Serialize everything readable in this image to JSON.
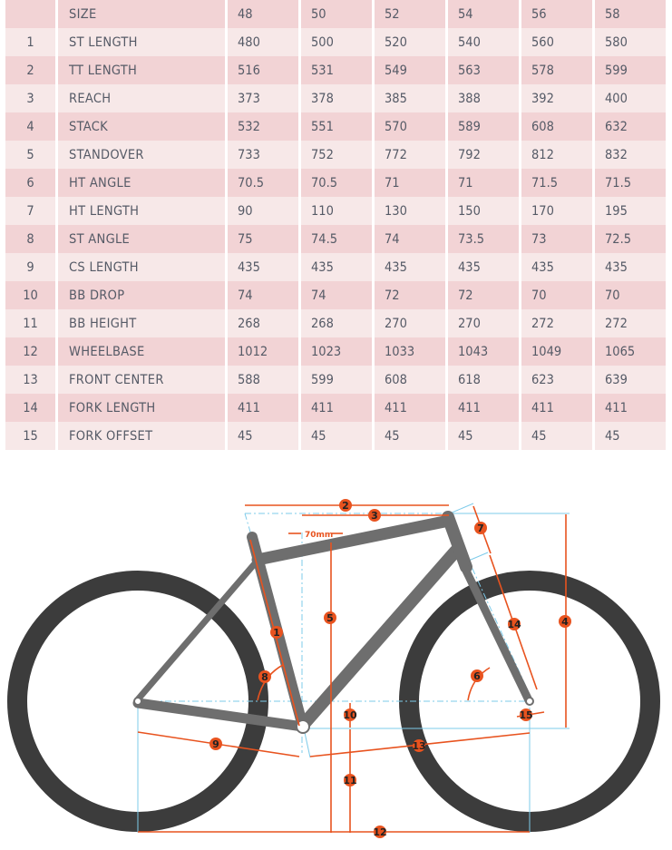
{
  "table": {
    "header": {
      "label": "SIZE",
      "sizes": [
        "48",
        "50",
        "52",
        "54",
        "56",
        "58"
      ]
    },
    "rows": [
      {
        "n": "1",
        "label": "ST LENGTH",
        "v": [
          "480",
          "500",
          "520",
          "540",
          "560",
          "580"
        ]
      },
      {
        "n": "2",
        "label": "TT LENGTH",
        "v": [
          "516",
          "531",
          "549",
          "563",
          "578",
          "599"
        ]
      },
      {
        "n": "3",
        "label": "REACH",
        "v": [
          "373",
          "378",
          "385",
          "388",
          "392",
          "400"
        ]
      },
      {
        "n": "4",
        "label": "STACK",
        "v": [
          "532",
          "551",
          "570",
          "589",
          "608",
          "632"
        ]
      },
      {
        "n": "5",
        "label": "STANDOVER",
        "v": [
          "733",
          "752",
          "772",
          "792",
          "812",
          "832"
        ]
      },
      {
        "n": "6",
        "label": "HT ANGLE",
        "v": [
          "70.5",
          "70.5",
          "71",
          "71",
          "71.5",
          "71.5"
        ]
      },
      {
        "n": "7",
        "label": "HT LENGTH",
        "v": [
          "90",
          "110",
          "130",
          "150",
          "170",
          "195"
        ]
      },
      {
        "n": "8",
        "label": "ST ANGLE",
        "v": [
          "75",
          "74.5",
          "74",
          "73.5",
          "73",
          "72.5"
        ]
      },
      {
        "n": "9",
        "label": "CS LENGTH",
        "v": [
          "435",
          "435",
          "435",
          "435",
          "435",
          "435"
        ]
      },
      {
        "n": "10",
        "label": "BB DROP",
        "v": [
          "74",
          "74",
          "72",
          "72",
          "70",
          "70"
        ]
      },
      {
        "n": "11",
        "label": "BB HEIGHT",
        "v": [
          "268",
          "268",
          "270",
          "270",
          "272",
          "272"
        ]
      },
      {
        "n": "12",
        "label": "WHEELBASE",
        "v": [
          "1012",
          "1023",
          "1033",
          "1043",
          "1049",
          "1065"
        ]
      },
      {
        "n": "13",
        "label": "FRONT CENTER",
        "v": [
          "588",
          "599",
          "608",
          "618",
          "623",
          "639"
        ]
      },
      {
        "n": "14",
        "label": "FORK LENGTH",
        "v": [
          "411",
          "411",
          "411",
          "411",
          "411",
          "411"
        ]
      },
      {
        "n": "15",
        "label": "FORK OFFSET",
        "v": [
          "45",
          "45",
          "45",
          "45",
          "45",
          "45"
        ]
      }
    ]
  },
  "diagram": {
    "offset_label": "70mm",
    "badges": [
      "1",
      "2",
      "3",
      "4",
      "5",
      "6",
      "7",
      "8",
      "9",
      "10",
      "11",
      "12",
      "13",
      "14",
      "15"
    ],
    "colors": {
      "dimension": "#e8531f",
      "reference": "#7ecbea",
      "frame": "#6e6e6e",
      "tire": "#3c3c3c"
    }
  }
}
